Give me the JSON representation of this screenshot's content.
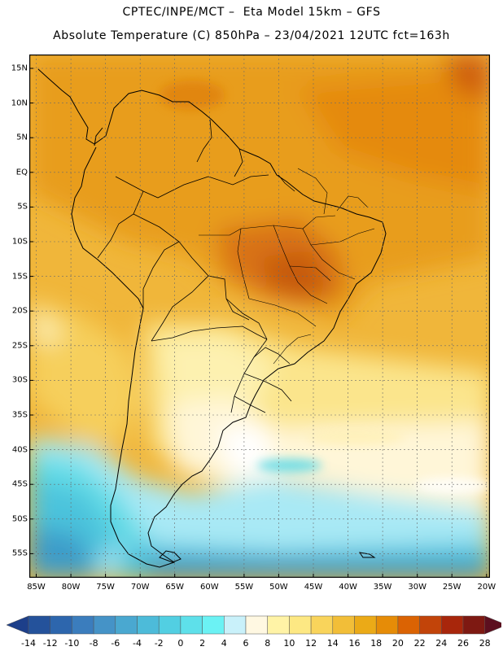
{
  "header": {
    "line1": "CPTEC/INPE/MCT –  Eta Model 15km – GFS",
    "line2": "Absolute Temperature (C) 850hPa – 23/04/2021 12UTC fct=163h"
  },
  "map": {
    "lon_range": [
      -86,
      -19.5
    ],
    "lat_range": [
      -58,
      17.5
    ],
    "lat_ticks": [
      {
        "value": 15,
        "label": "15N"
      },
      {
        "value": 10,
        "label": "10N"
      },
      {
        "value": 5,
        "label": "5N"
      },
      {
        "value": 0,
        "label": "EQ"
      },
      {
        "value": -5,
        "label": "5S"
      },
      {
        "value": -10,
        "label": "10S"
      },
      {
        "value": -15,
        "label": "15S"
      },
      {
        "value": -20,
        "label": "20S"
      },
      {
        "value": -25,
        "label": "25S"
      },
      {
        "value": -30,
        "label": "30S"
      },
      {
        "value": -35,
        "label": "35S"
      },
      {
        "value": -40,
        "label": "40S"
      },
      {
        "value": -45,
        "label": "45S"
      },
      {
        "value": -50,
        "label": "50S"
      },
      {
        "value": -55,
        "label": "55S"
      }
    ],
    "lon_ticks": [
      {
        "value": -85,
        "label": "85W"
      },
      {
        "value": -80,
        "label": "80W"
      },
      {
        "value": -75,
        "label": "75W"
      },
      {
        "value": -70,
        "label": "70W"
      },
      {
        "value": -65,
        "label": "65W"
      },
      {
        "value": -60,
        "label": "60W"
      },
      {
        "value": -55,
        "label": "55W"
      },
      {
        "value": -50,
        "label": "50W"
      },
      {
        "value": -45,
        "label": "45W"
      },
      {
        "value": -40,
        "label": "40W"
      },
      {
        "value": -35,
        "label": "35W"
      },
      {
        "value": -30,
        "label": "30W"
      },
      {
        "value": -25,
        "label": "25W"
      },
      {
        "value": -20,
        "label": "20W"
      }
    ]
  },
  "colorbar": {
    "labels": [
      "-14",
      "-12",
      "-10",
      "-8",
      "-6",
      "-4",
      "-2",
      "0",
      "2",
      "4",
      "6",
      "8",
      "10",
      "12",
      "14",
      "16",
      "18",
      "20",
      "22",
      "24",
      "26",
      "28"
    ],
    "colors": [
      "#1d3f8a",
      "#24529b",
      "#2d66ad",
      "#3b7dbd",
      "#4593c7",
      "#4aa8d0",
      "#4dbbd9",
      "#52cfe2",
      "#5ee0ea",
      "#6bf2f4",
      "#c9f1fa",
      "#fff8e2",
      "#fff3a6",
      "#fde883",
      "#f9d45b",
      "#f2be38",
      "#ebaa17",
      "#e68c07",
      "#db6303",
      "#c24409",
      "#a8260b",
      "#7e1912",
      "#5c0f1f"
    ]
  }
}
